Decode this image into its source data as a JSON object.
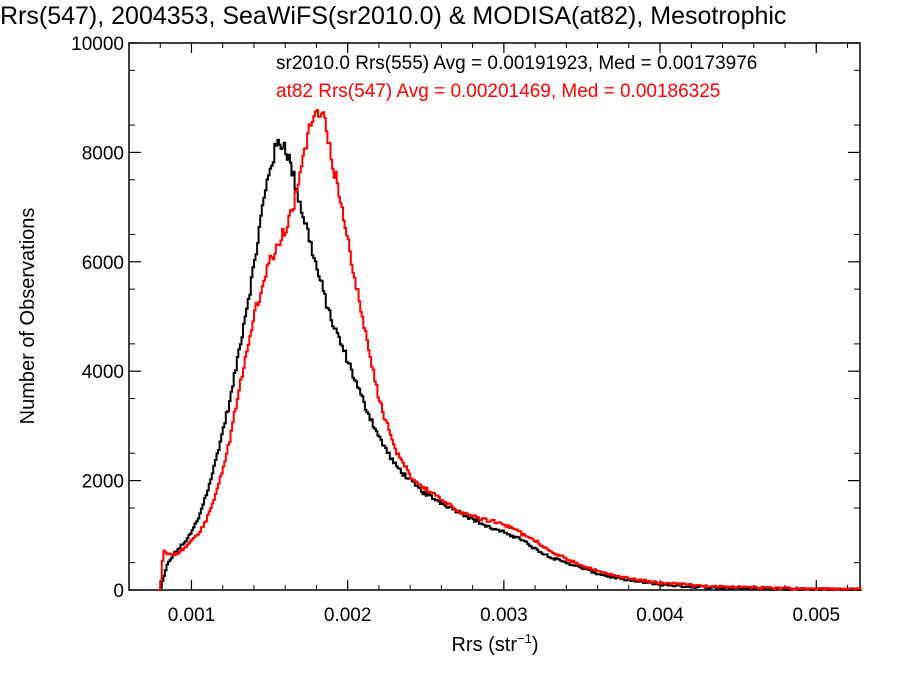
{
  "chart_data": {
    "type": "line",
    "step": true,
    "title": "Rrs(547), 2004353, SeaWiFS(sr2010.0) & MODISA(at82), Mesotrophic",
    "xlabel": "Rrs (str",
    "xlabel_sup": "−1",
    "xlabel_close": ")",
    "ylabel": "Number of Observations",
    "xlim": [
      0.0006,
      0.00528
    ],
    "ylim": [
      0,
      10000
    ],
    "grid": false,
    "legend_position": "top-right",
    "x_ticks": [
      {
        "value": 0.001,
        "label": "0.001"
      },
      {
        "value": 0.002,
        "label": "0.002"
      },
      {
        "value": 0.003,
        "label": "0.003"
      },
      {
        "value": 0.004,
        "label": "0.004"
      },
      {
        "value": 0.005,
        "label": "0.005"
      }
    ],
    "y_ticks": [
      {
        "value": 0,
        "label": "0"
      },
      {
        "value": 2000,
        "label": "2000"
      },
      {
        "value": 4000,
        "label": "4000"
      },
      {
        "value": 6000,
        "label": "6000"
      },
      {
        "value": 8000,
        "label": "8000"
      },
      {
        "value": 10000,
        "label": "10000"
      }
    ],
    "series": [
      {
        "name": "sr2010.0 Rrs(555) Avg = 0.00191923, Med = 0.00173976",
        "color": "#000000",
        "x": [
          0.0008,
          0.00082,
          0.00085,
          0.0009,
          0.00095,
          0.001,
          0.00105,
          0.0011,
          0.00115,
          0.0012,
          0.00125,
          0.0013,
          0.00135,
          0.0014,
          0.00145,
          0.0015,
          0.00155,
          0.0016,
          0.00165,
          0.0017,
          0.00175,
          0.0018,
          0.00185,
          0.0019,
          0.002,
          0.0021,
          0.0022,
          0.0023,
          0.0024,
          0.0025,
          0.0026,
          0.0027,
          0.0028,
          0.0029,
          0.003,
          0.0031,
          0.0032,
          0.0033,
          0.0034,
          0.0035,
          0.0036,
          0.0037,
          0.0038,
          0.0039,
          0.004,
          0.0042,
          0.0044,
          0.0046,
          0.0048,
          0.005,
          0.0052
        ],
        "y": [
          0,
          200,
          500,
          700,
          850,
          1050,
          1350,
          1800,
          2300,
          2900,
          3500,
          4300,
          5100,
          5900,
          6900,
          7700,
          8150,
          8150,
          7600,
          7000,
          6500,
          5900,
          5400,
          4900,
          4200,
          3450,
          2800,
          2300,
          2000,
          1750,
          1600,
          1450,
          1300,
          1150,
          1050,
          950,
          750,
          600,
          500,
          400,
          300,
          230,
          180,
          140,
          100,
          60,
          40,
          30,
          20,
          15,
          10
        ]
      },
      {
        "name": "at82 Rrs(547) Avg = 0.00201469, Med = 0.00186325",
        "color": "#ff0000",
        "x": [
          0.0008,
          0.00082,
          0.00085,
          0.0009,
          0.00095,
          0.001,
          0.00105,
          0.0011,
          0.00115,
          0.0012,
          0.00125,
          0.0013,
          0.00135,
          0.0014,
          0.00145,
          0.0015,
          0.00155,
          0.0016,
          0.00165,
          0.0017,
          0.00175,
          0.0018,
          0.00185,
          0.0019,
          0.002,
          0.0021,
          0.0022,
          0.0023,
          0.0024,
          0.0025,
          0.0026,
          0.0027,
          0.0028,
          0.0029,
          0.003,
          0.0031,
          0.0032,
          0.0033,
          0.0034,
          0.0035,
          0.0036,
          0.0037,
          0.0038,
          0.0039,
          0.004,
          0.0042,
          0.0044,
          0.0046,
          0.0048,
          0.005,
          0.0052
        ],
        "y": [
          0,
          700,
          650,
          650,
          750,
          900,
          1050,
          1300,
          1700,
          2200,
          2800,
          3600,
          4300,
          5000,
          5500,
          6000,
          6300,
          6600,
          7000,
          7700,
          8400,
          8700,
          8600,
          7900,
          6400,
          4900,
          3500,
          2600,
          2100,
          1850,
          1650,
          1450,
          1350,
          1280,
          1200,
          1050,
          900,
          700,
          570,
          450,
          350,
          270,
          210,
          170,
          130,
          90,
          60,
          45,
          30,
          20,
          15
        ]
      }
    ]
  }
}
